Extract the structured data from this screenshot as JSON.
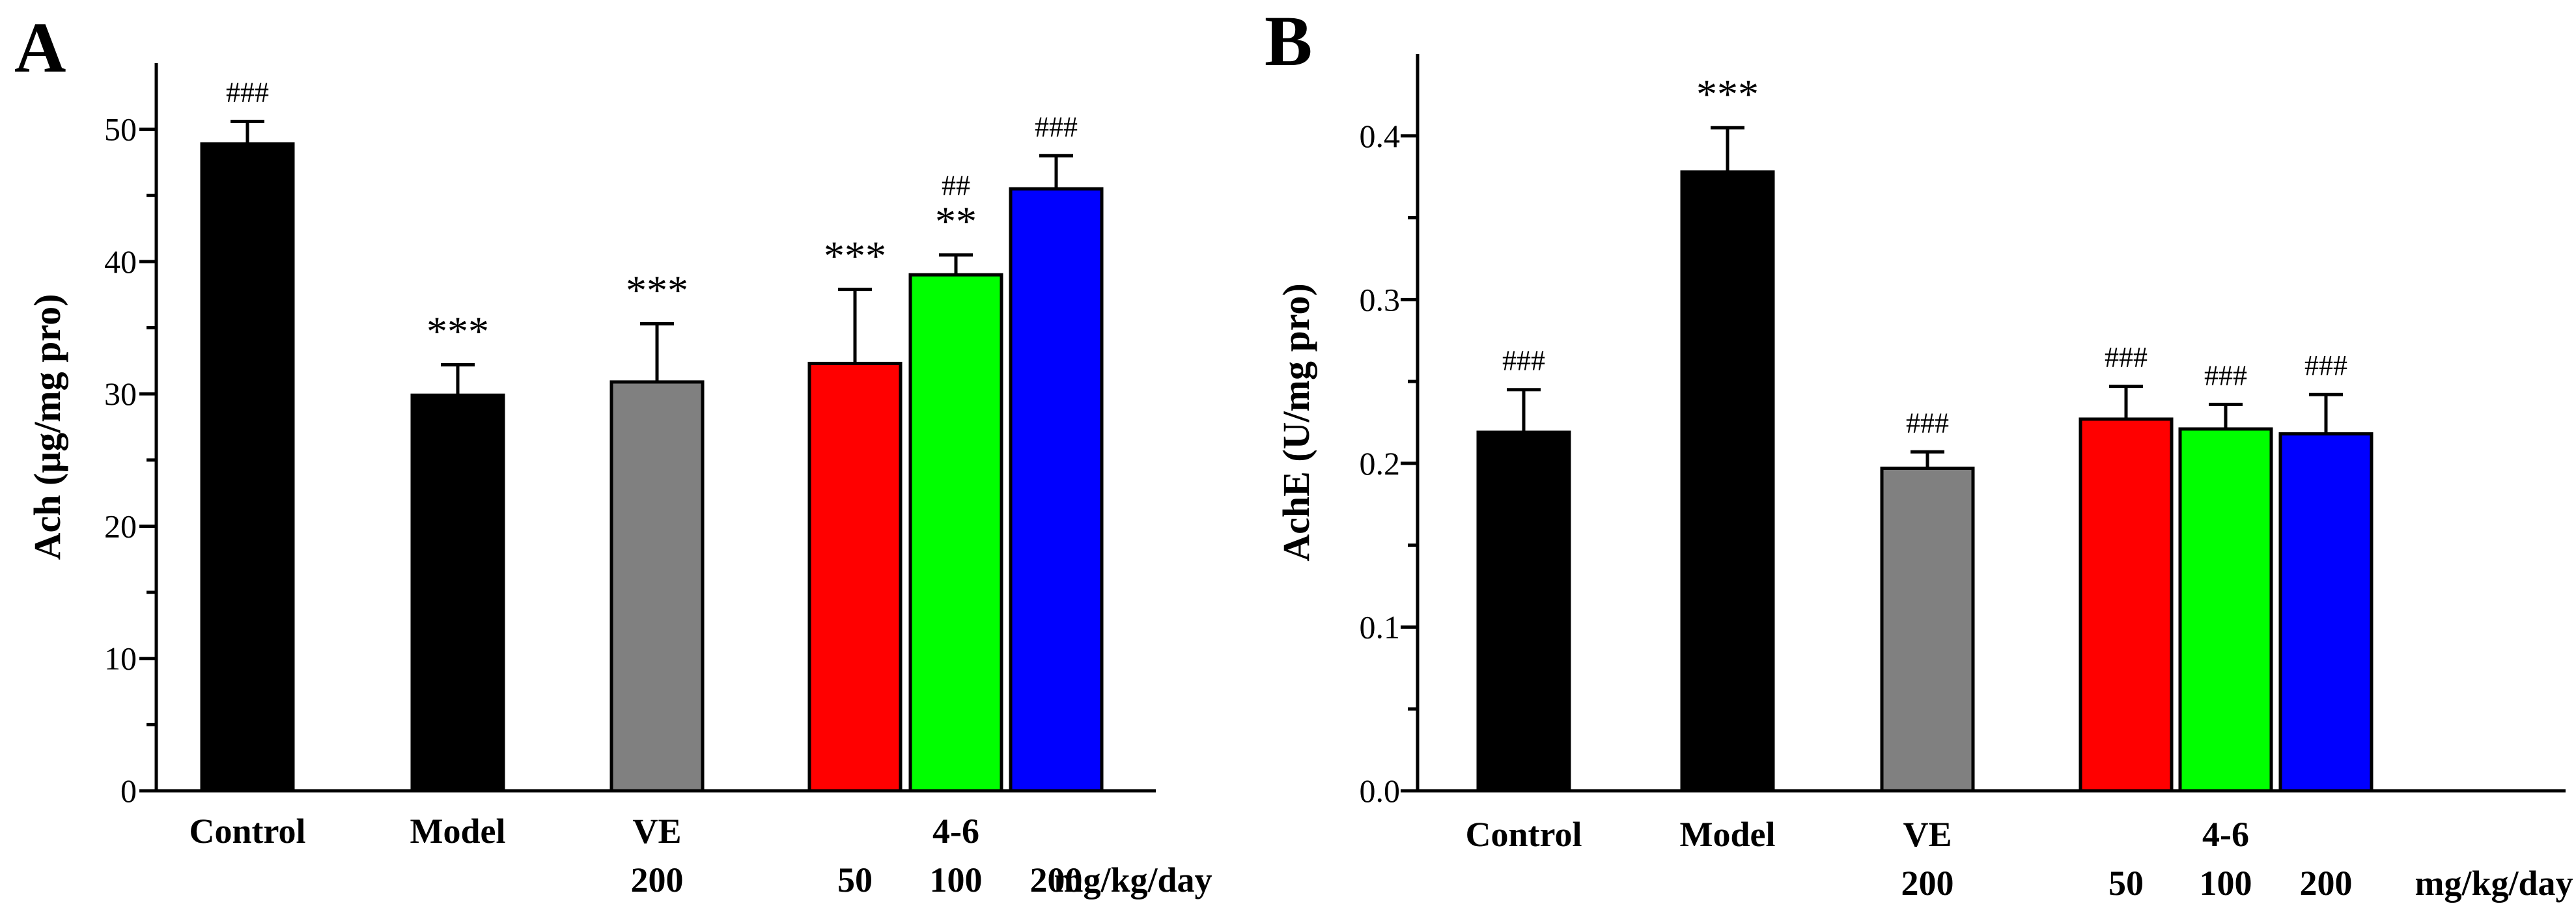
{
  "chart_data": [
    {
      "type": "bar",
      "panel_label": "A",
      "ylabel": "Ach (μg/mg pro)",
      "ylim": [
        0,
        55
      ],
      "yticks": [
        0,
        10,
        20,
        30,
        40,
        50
      ],
      "categories": [
        "Control",
        "Model",
        "VE",
        "4-6 50",
        "4-6 100",
        "4-6 200"
      ],
      "values": [
        48.9,
        29.9,
        30.9,
        32.3,
        39.0,
        45.5
      ],
      "errors": [
        1.7,
        2.3,
        4.4,
        5.6,
        1.5,
        2.5
      ],
      "colors": [
        "#000000",
        "#000000",
        "#808080",
        "#ff0000",
        "#00ff00",
        "#0000ff"
      ],
      "annotations": [
        [
          "###"
        ],
        [
          "***"
        ],
        [
          "***"
        ],
        [
          "***"
        ],
        [
          "##",
          "**"
        ],
        [
          "###"
        ]
      ],
      "xlabels_row1": [
        {
          "text": "Control",
          "index": 0
        },
        {
          "text": "Model",
          "index": 1
        },
        {
          "text": "VE",
          "index": 2
        },
        {
          "text": "4-6",
          "index": 4
        }
      ],
      "xlabels_row2": [
        {
          "text": "200",
          "index": 2
        },
        {
          "text": "50",
          "index": 3
        },
        {
          "text": "100",
          "index": 4
        },
        {
          "text": "200",
          "index": 5
        }
      ],
      "unit_label": "mg/kg/day"
    },
    {
      "type": "bar",
      "panel_label": "B",
      "ylabel": "AchE (U/mg pro)",
      "ylim": [
        0,
        0.45
      ],
      "yticks": [
        "0.0",
        "0.1",
        "0.2",
        "0.3",
        "0.4"
      ],
      "categories": [
        "Control",
        "Model",
        "VE",
        "4-6 50",
        "4-6 100",
        "4-6 200"
      ],
      "values": [
        0.219,
        0.378,
        0.197,
        0.227,
        0.221,
        0.218
      ],
      "errors": [
        0.026,
        0.027,
        0.01,
        0.02,
        0.015,
        0.024
      ],
      "colors": [
        "#000000",
        "#000000",
        "#808080",
        "#ff0000",
        "#00ff00",
        "#0000ff"
      ],
      "annotations": [
        [
          "###"
        ],
        [
          "***"
        ],
        [
          "###"
        ],
        [
          "###"
        ],
        [
          "###"
        ],
        [
          "###"
        ]
      ],
      "xlabels_row1": [
        {
          "text": "Control",
          "index": 0
        },
        {
          "text": "Model",
          "index": 1
        },
        {
          "text": "VE",
          "index": 2
        },
        {
          "text": "4-6",
          "index": 4
        }
      ],
      "xlabels_row2": [
        {
          "text": "200",
          "index": 2
        },
        {
          "text": "50",
          "index": 3
        },
        {
          "text": "100",
          "index": 4
        },
        {
          "text": "200",
          "index": 5
        }
      ],
      "unit_label": "mg/kg/day"
    }
  ]
}
